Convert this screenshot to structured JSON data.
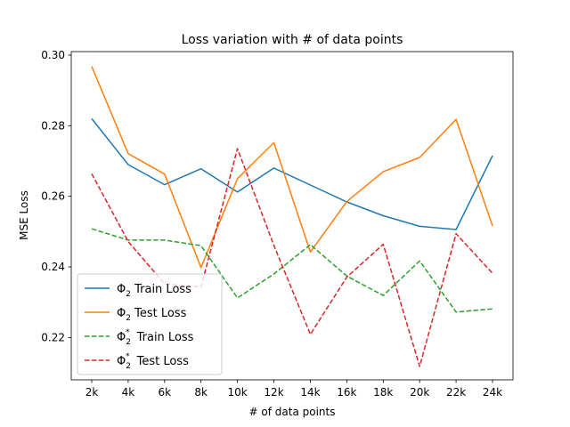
{
  "chart_data": {
    "type": "line",
    "title": "Loss variation with # of data points",
    "xlabel": "# of data points",
    "ylabel": "MSE Loss",
    "categories": [
      "2k",
      "4k",
      "6k",
      "8k",
      "10k",
      "12k",
      "14k",
      "16k",
      "18k",
      "20k",
      "22k",
      "24k"
    ],
    "ylim": [
      0.208,
      0.301
    ],
    "yticks": [
      0.22,
      0.24,
      0.26,
      0.28,
      0.3
    ],
    "ytick_labels": [
      "0.22",
      "0.24",
      "0.26",
      "0.28",
      "0.30"
    ],
    "grid": false,
    "legend_position": "lower-left",
    "series": [
      {
        "name_parts": [
          "Φ",
          "2",
          "",
          "Train Loss"
        ],
        "color": "#1f77b4",
        "style": "solid",
        "values": [
          0.282,
          0.269,
          0.2633,
          0.2678,
          0.2612,
          0.268,
          0.2632,
          0.2584,
          0.2545,
          0.2515,
          0.2506,
          0.2715
        ]
      },
      {
        "name_parts": [
          "Φ",
          "2",
          "",
          "Test Loss"
        ],
        "color": "#ff7f0e",
        "style": "solid",
        "values": [
          0.2968,
          0.2721,
          0.2663,
          0.2398,
          0.265,
          0.2752,
          0.2442,
          0.2585,
          0.267,
          0.271,
          0.2818,
          0.2516
        ]
      },
      {
        "name_parts": [
          "Φ",
          "2",
          "*",
          "Train Loss"
        ],
        "color": "#2ca02c",
        "style": "dashed",
        "values": [
          0.2508,
          0.2476,
          0.2476,
          0.246,
          0.2312,
          0.238,
          0.2463,
          0.2374,
          0.2319,
          0.2417,
          0.2272,
          0.2281
        ]
      },
      {
        "name_parts": [
          "Φ",
          "2",
          "*",
          "Test Loss"
        ],
        "color": "#d62728",
        "style": "dashed",
        "values": [
          0.2664,
          0.2472,
          0.2352,
          0.2343,
          0.2735,
          0.2461,
          0.2209,
          0.2371,
          0.2464,
          0.2118,
          0.2494,
          0.2382
        ]
      }
    ]
  }
}
